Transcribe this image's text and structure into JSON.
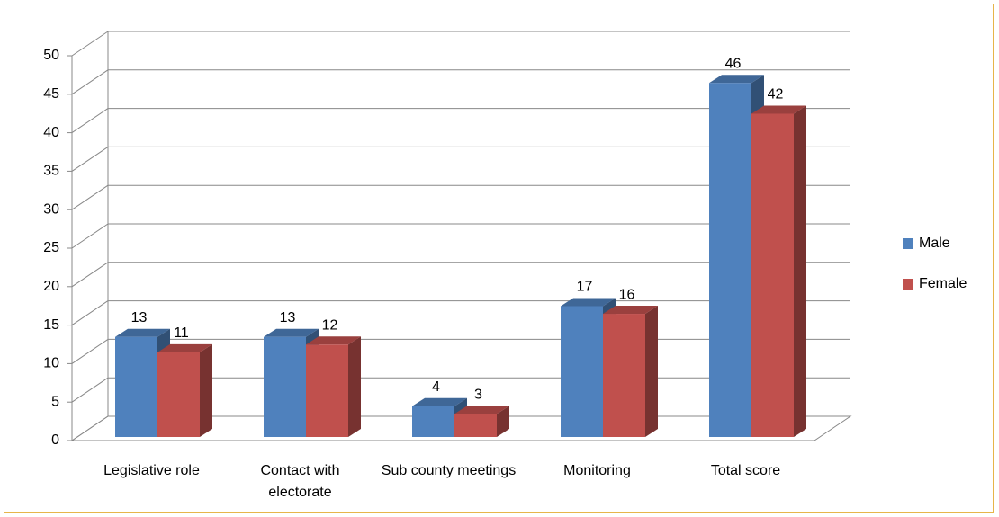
{
  "chart_data": {
    "type": "bar3d",
    "categories": [
      "Legislative role",
      "Contact with electorate",
      "Sub county meetings",
      "Monitoring",
      "Total score"
    ],
    "series": [
      {
        "name": "Male",
        "color": "#4f81bd",
        "values": [
          13,
          13,
          4,
          17,
          46
        ]
      },
      {
        "name": "Female",
        "color": "#c0504d",
        "values": [
          11,
          12,
          3,
          16,
          42
        ]
      }
    ],
    "ylim": [
      0,
      50
    ],
    "yticks": [
      0,
      5,
      10,
      15,
      20,
      25,
      30,
      35,
      40,
      45,
      50
    ],
    "grid": true,
    "legend": "right"
  }
}
